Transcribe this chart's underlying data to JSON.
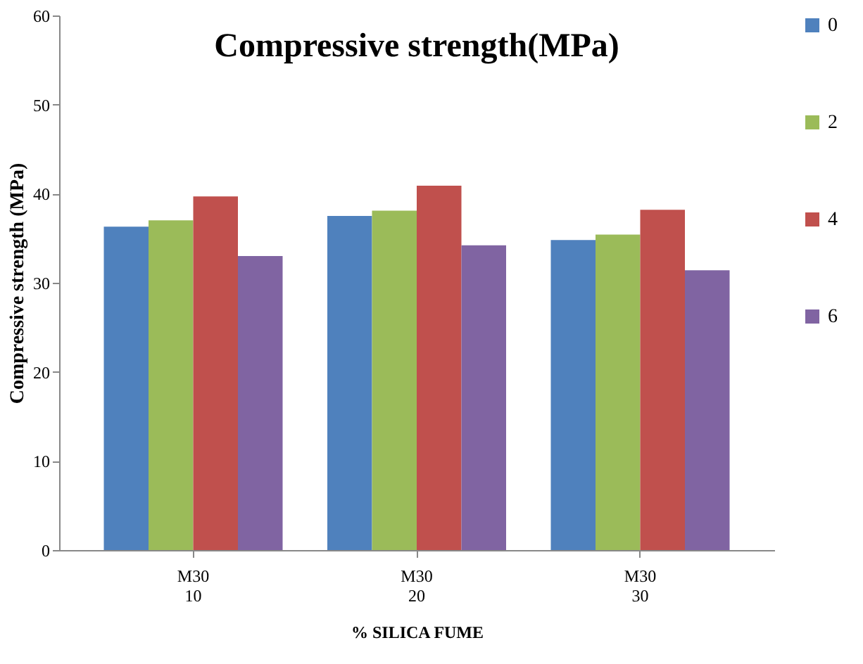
{
  "chart_data": {
    "type": "bar",
    "title": "Compressive strength(MPa)",
    "xlabel": "% SILICA FUME",
    "ylabel": "Compressive  strength (MPa)",
    "categories": [
      "M30\n10",
      "M30\n20",
      "M30\n30"
    ],
    "series": [
      {
        "name": "0",
        "color": "#4f81bd",
        "values": [
          36.3,
          37.5,
          34.8
        ]
      },
      {
        "name": "2",
        "color": "#9bbb59",
        "values": [
          37.0,
          38.1,
          35.4
        ]
      },
      {
        "name": "4",
        "color": "#c0504d",
        "values": [
          39.7,
          40.9,
          38.2
        ]
      },
      {
        "name": "6",
        "color": "#8064a2",
        "values": [
          33.0,
          34.2,
          31.4
        ]
      }
    ],
    "ylim": [
      0,
      60
    ],
    "yticks": [
      0,
      10,
      20,
      30,
      40,
      50,
      60
    ],
    "grid": false,
    "legend": "right"
  }
}
